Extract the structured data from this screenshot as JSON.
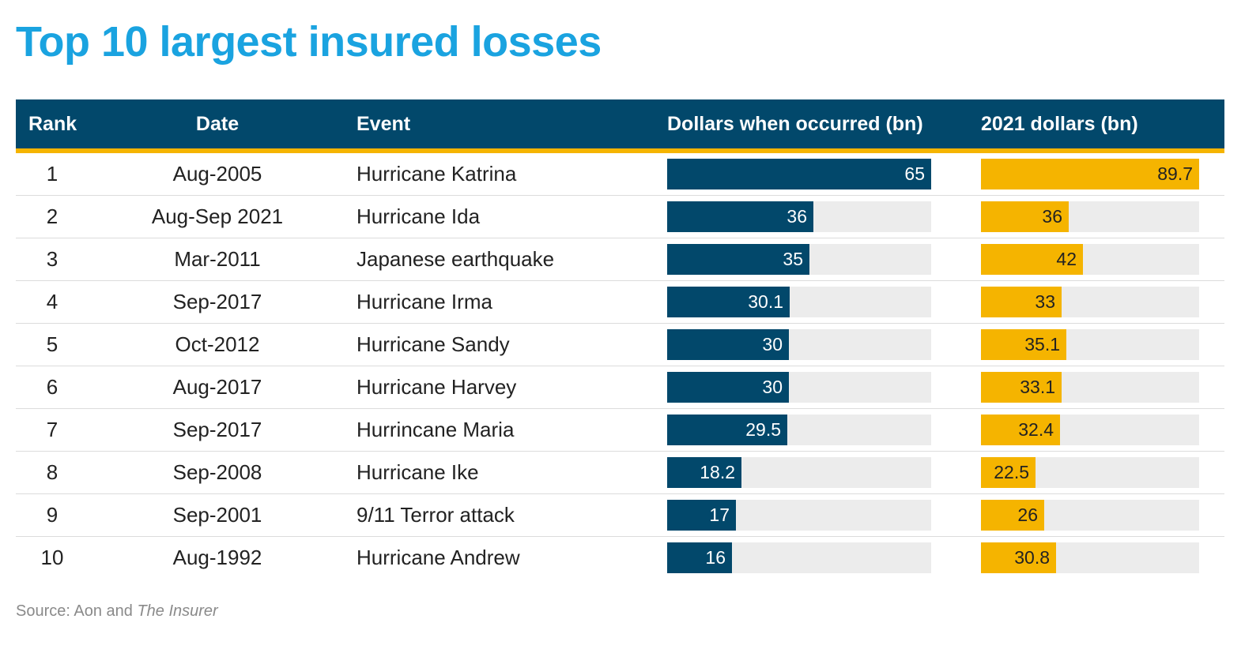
{
  "title": "Top 10 largest insured losses",
  "columns": {
    "rank": "Rank",
    "date": "Date",
    "event": "Event",
    "dollars_occurred": "Dollars when occurred (bn)",
    "dollars_2021": "2021 dollars (bn)"
  },
  "source": {
    "prefix": "Source: Aon and ",
    "publication": "The Insurer"
  },
  "colors": {
    "title": "#1aa3e0",
    "header_bg": "#02486b",
    "header_rule": "#f5b400",
    "bar_occurred": "#02486b",
    "bar_2021": "#f5b400",
    "bar_track": "#ececec"
  },
  "chart_data": {
    "type": "table",
    "title": "Top 10 largest insured losses",
    "scale_max": {
      "dollars_occurred": 65,
      "dollars_2021": 89.7
    },
    "rows": [
      {
        "rank": "1",
        "date": "Aug-2005",
        "event": "Hurricane Katrina",
        "dollars_occurred": 65,
        "dollars_2021": 89.7
      },
      {
        "rank": "2",
        "date": "Aug-Sep 2021",
        "event": "Hurricane Ida",
        "dollars_occurred": 36,
        "dollars_2021": 36
      },
      {
        "rank": "3",
        "date": "Mar-2011",
        "event": "Japanese earthquake",
        "dollars_occurred": 35,
        "dollars_2021": 42
      },
      {
        "rank": "4",
        "date": "Sep-2017",
        "event": "Hurricane Irma",
        "dollars_occurred": 30.1,
        "dollars_2021": 33
      },
      {
        "rank": "5",
        "date": "Oct-2012",
        "event": "Hurricane Sandy",
        "dollars_occurred": 30,
        "dollars_2021": 35.1
      },
      {
        "rank": "6",
        "date": "Aug-2017",
        "event": "Hurricane Harvey",
        "dollars_occurred": 30,
        "dollars_2021": 33.1
      },
      {
        "rank": "7",
        "date": "Sep-2017",
        "event": "Hurrincane Maria",
        "dollars_occurred": 29.5,
        "dollars_2021": 32.4
      },
      {
        "rank": "8",
        "date": "Sep-2008",
        "event": "Hurricane Ike",
        "dollars_occurred": 18.2,
        "dollars_2021": 22.5
      },
      {
        "rank": "9",
        "date": "Sep-2001",
        "event": "9/11 Terror attack",
        "dollars_occurred": 17,
        "dollars_2021": 26
      },
      {
        "rank": "10",
        "date": "Aug-1992",
        "event": "Hurricane Andrew",
        "dollars_occurred": 16,
        "dollars_2021": 30.8
      }
    ]
  }
}
